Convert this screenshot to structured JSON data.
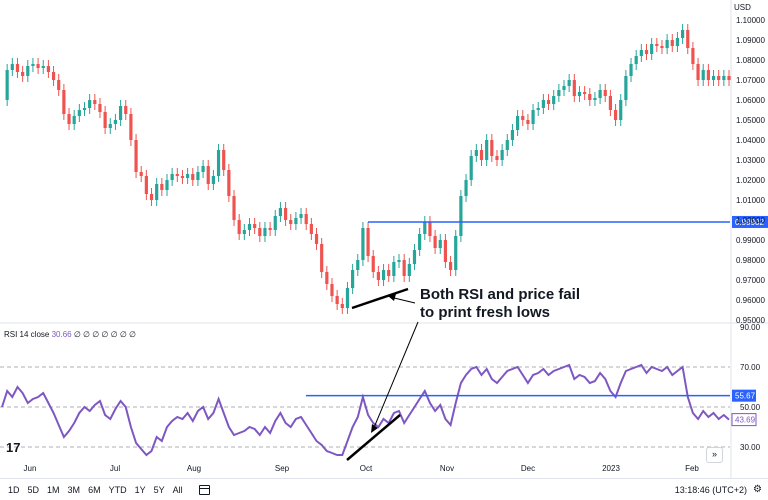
{
  "chart_data": {
    "type": "candlestick+line",
    "currency": "USD",
    "price_ticks": [
      "1.10000",
      "1.09000",
      "1.08000",
      "1.07000",
      "1.06000",
      "1.05000",
      "1.04000",
      "1.03000",
      "1.02000",
      "1.01000",
      "1.00000",
      "0.99000",
      "0.98000",
      "0.97000",
      "0.96000",
      "0.95000"
    ],
    "price_line_label": "0.99902",
    "price_line_value": 0.99902,
    "rsi_ticks": [
      "90.00",
      "70.00",
      "50.00",
      "30.00"
    ],
    "rsi_line_label": "55.67",
    "rsi_line_value": 55.67,
    "rsi_last_label": "43.69",
    "rsi_last_value": 43.69,
    "rsi_indicator_label": "RSI 14 close",
    "rsi_indicator_value": "30.66",
    "rsi_indicator_extra": "∅ ∅ ∅ ∅ ∅ ∅ ∅",
    "x_labels": [
      "Jun",
      "Jul",
      "Aug",
      "Sep",
      "Oct",
      "Nov",
      "Dec",
      "2023",
      "Feb"
    ],
    "annotation": [
      "Both RSI and price fail",
      "to print fresh lows"
    ],
    "up_color": "#26a69a",
    "down_color": "#ef5350",
    "rsi_color": "#7e57c2",
    "level_color": "#2962ff",
    "price_path": [
      1.06,
      1.075,
      1.078,
      1.074,
      1.072,
      1.077,
      1.078,
      1.076,
      1.077,
      1.074,
      1.07,
      1.065,
      1.053,
      1.048,
      1.052,
      1.055,
      1.056,
      1.06,
      1.058,
      1.054,
      1.046,
      1.048,
      1.05,
      1.057,
      1.053,
      1.04,
      1.024,
      1.022,
      1.013,
      1.01,
      1.018,
      1.015,
      1.02,
      1.023,
      1.022,
      1.021,
      1.023,
      1.02,
      1.024,
      1.027,
      1.018,
      1.022,
      1.035,
      1.025,
      1.012,
      1.0,
      0.993,
      0.995,
      0.998,
      0.996,
      0.992,
      0.996,
      0.995,
      1.002,
      1.006,
      1.0,
      0.998,
      1.001,
      1.003,
      0.998,
      0.993,
      0.988,
      0.974,
      0.968,
      0.962,
      0.958,
      0.956,
      0.966,
      0.975,
      0.98,
      0.996,
      0.982,
      0.974,
      0.97,
      0.975,
      0.972,
      0.979,
      0.98,
      0.972,
      0.978,
      0.985,
      0.993,
      0.999,
      0.992,
      0.986,
      0.99,
      0.979,
      0.975,
      0.992,
      1.012,
      1.02,
      1.032,
      1.035,
      1.03,
      1.04,
      1.032,
      1.03,
      1.035,
      1.04,
      1.045,
      1.052,
      1.05,
      1.048,
      1.055,
      1.056,
      1.06,
      1.058,
      1.062,
      1.065,
      1.067,
      1.07,
      1.062,
      1.064,
      1.063,
      1.06,
      1.061,
      1.065,
      1.062,
      1.055,
      1.05,
      1.06,
      1.072,
      1.078,
      1.082,
      1.085,
      1.083,
      1.088,
      1.087,
      1.086,
      1.09,
      1.087,
      1.091,
      1.095,
      1.086,
      1.078,
      1.07,
      1.075,
      1.07,
      1.072,
      1.07,
      1.072,
      1.07
    ],
    "rsi_path": [
      50,
      58,
      55,
      60,
      57,
      52,
      54,
      55,
      57,
      52,
      47,
      41,
      35,
      38,
      42,
      47,
      50,
      48,
      51,
      53,
      46,
      44,
      49,
      53,
      50,
      40,
      32,
      29,
      26,
      28,
      35,
      33,
      40,
      43,
      45,
      44,
      47,
      43,
      48,
      50,
      44,
      47,
      54,
      47,
      40,
      36,
      37,
      38,
      40,
      39,
      36,
      40,
      37,
      43,
      47,
      42,
      40,
      44,
      45,
      41,
      37,
      33,
      31,
      28,
      27,
      26,
      26,
      33,
      40,
      45,
      55,
      46,
      42,
      40,
      44,
      42,
      47,
      48,
      42,
      46,
      50,
      54,
      58,
      52,
      48,
      51,
      44,
      41,
      52,
      62,
      66,
      69,
      70,
      66,
      69,
      64,
      62,
      65,
      68,
      69,
      70,
      66,
      62,
      66,
      67,
      69,
      66,
      68,
      69,
      70,
      71,
      64,
      66,
      65,
      62,
      63,
      67,
      64,
      58,
      55,
      62,
      68,
      69,
      70,
      71,
      67,
      70,
      69,
      68,
      70,
      66,
      68,
      70,
      55,
      47,
      44,
      48,
      45,
      47,
      44,
      46,
      43.69
    ]
  }
}
